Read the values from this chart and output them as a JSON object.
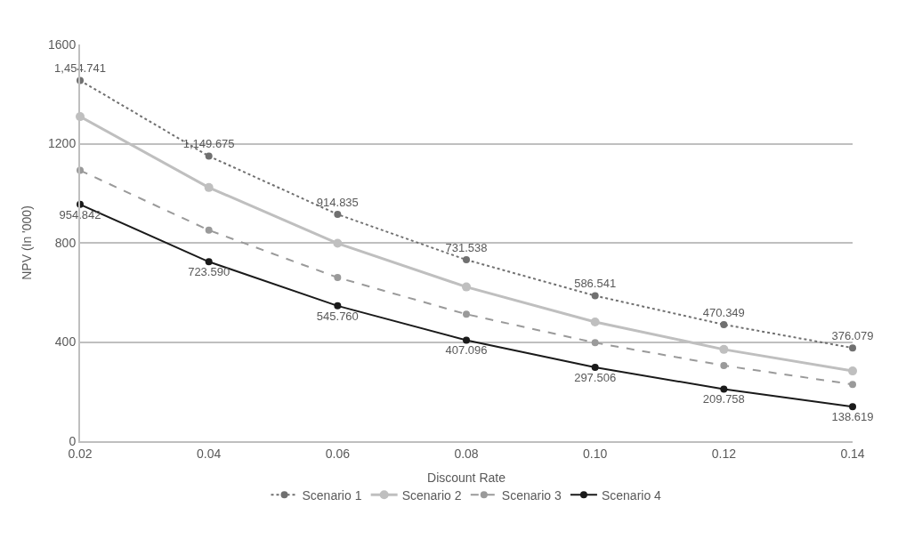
{
  "chart_data": {
    "type": "line",
    "xlabel": "Discount Rate",
    "ylabel": "NPV (In '000)",
    "x": [
      0.02,
      0.04,
      0.06,
      0.08,
      0.1,
      0.12,
      0.14
    ],
    "xlim": [
      0.02,
      0.14
    ],
    "xticks": [
      {
        "value": 0.02,
        "label": "0.02"
      },
      {
        "value": 0.04,
        "label": "0.04"
      },
      {
        "value": 0.06,
        "label": "0.06"
      },
      {
        "value": 0.08,
        "label": "0.08"
      },
      {
        "value": 0.1,
        "label": "0.10"
      },
      {
        "value": 0.12,
        "label": "0.12"
      },
      {
        "value": 0.14,
        "label": "0.14"
      }
    ],
    "ylim": [
      0,
      1600
    ],
    "yticks": [
      0,
      400,
      800,
      1200,
      1600
    ],
    "grid": "y",
    "legend": "bottom",
    "marker": "circle",
    "series": [
      {
        "name": "Scenario 1",
        "color": "#707070",
        "line_style": "dotted",
        "values": [
          1454.741,
          1149.675,
          914.835,
          731.538,
          586.541,
          470.349,
          376.079
        ],
        "value_labels": [
          "1,454.741",
          "1,149.675",
          "914.835",
          "731.538",
          "586.541",
          "470.349",
          "376.079"
        ]
      },
      {
        "name": "Scenario 2",
        "color": "#bfbfbf",
        "line_style": "solid",
        "values": [
          1309,
          1023,
          798,
          622,
          481,
          370,
          283
        ]
      },
      {
        "name": "Scenario 3",
        "color": "#9a9a9a",
        "line_style": "dashed",
        "values": [
          1092,
          851,
          660,
          512,
          397,
          305,
          229
        ]
      },
      {
        "name": "Scenario 4",
        "color": "#1a1a1a",
        "line_style": "solid",
        "values": [
          954.842,
          723.59,
          545.76,
          407.096,
          297.506,
          209.758,
          138.619
        ],
        "value_labels": [
          "954.842",
          "723.590",
          "545.760",
          "407.096",
          "297.506",
          "209.758",
          "138.619"
        ]
      }
    ]
  }
}
